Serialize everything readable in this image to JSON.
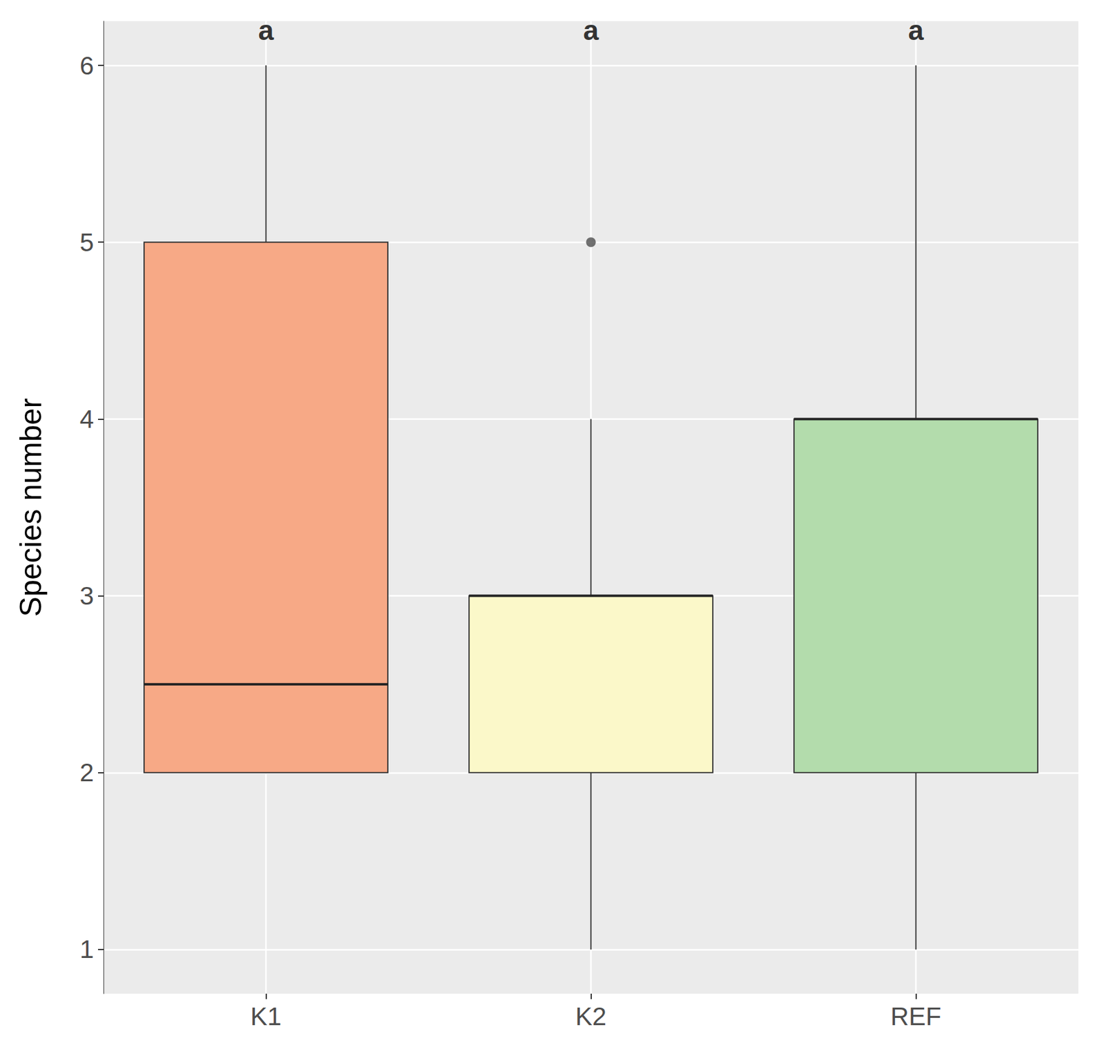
{
  "chart_data": {
    "type": "boxplot",
    "y_label": "Species number",
    "categories": [
      "K1",
      "K2",
      "REF"
    ],
    "boxes": [
      {
        "min": 2,
        "q1": 2,
        "median": 2.5,
        "q3": 5,
        "max": 6
      },
      {
        "min": 1,
        "q1": 2,
        "median": 3,
        "q3": 3,
        "max": 4
      },
      {
        "min": 1,
        "q1": 2,
        "median": 4,
        "q3": 4,
        "max": 6
      }
    ],
    "colors": [
      "#f7a986",
      "#fbf8c9",
      "#b3dcac"
    ],
    "outliers": [
      {
        "category": "K2",
        "value": 5
      }
    ],
    "letters": [
      {
        "category": "K1",
        "y": 6.2,
        "text": "a"
      },
      {
        "category": "K2",
        "y": 6.2,
        "text": "a"
      },
      {
        "category": "REF",
        "y": 6.2,
        "text": "a"
      }
    ],
    "ylim": [
      0.75,
      6.25
    ],
    "yticks": [
      1,
      2,
      3,
      4,
      5,
      6
    ],
    "grid": true
  }
}
